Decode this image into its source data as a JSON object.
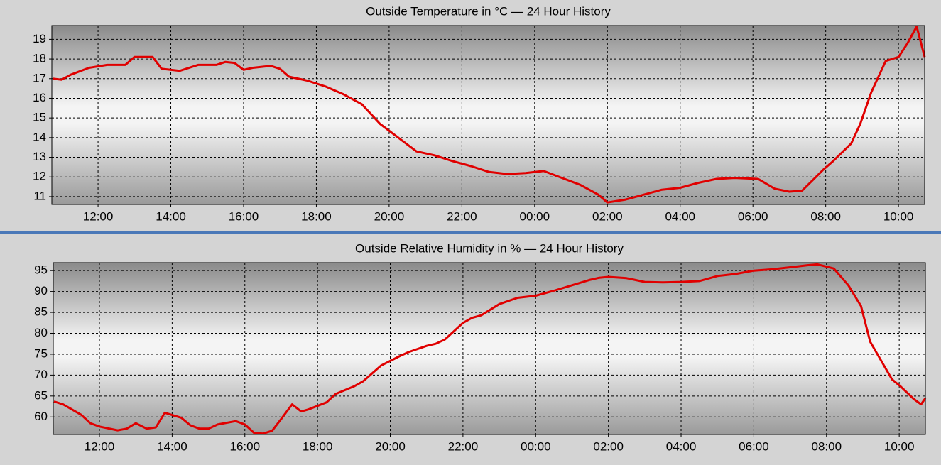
{
  "chart_data": [
    {
      "type": "line",
      "title": "Outside Temperature in °C — 24 Hour History",
      "color": "#e00000",
      "grid": true,
      "xlim": [
        10.73,
        34.72
      ],
      "ylim": [
        10.6,
        19.7
      ],
      "yticks": [
        11,
        12,
        13,
        14,
        15,
        16,
        17,
        18,
        19
      ],
      "xticks": [
        {
          "value": 12,
          "label": "12:00"
        },
        {
          "value": 14,
          "label": "14:00"
        },
        {
          "value": 16,
          "label": "16:00"
        },
        {
          "value": 18,
          "label": "18:00"
        },
        {
          "value": 20,
          "label": "20:00"
        },
        {
          "value": 22,
          "label": "22:00"
        },
        {
          "value": 24,
          "label": "00:00"
        },
        {
          "value": 26,
          "label": "02:00"
        },
        {
          "value": 28,
          "label": "04:00"
        },
        {
          "value": 30,
          "label": "06:00"
        },
        {
          "value": 32,
          "label": "08:00"
        },
        {
          "value": 34,
          "label": "10:00"
        }
      ],
      "x": [
        10.75,
        11.0,
        11.25,
        11.75,
        12.25,
        12.75,
        13.0,
        13.5,
        13.75,
        14.25,
        14.75,
        15.25,
        15.5,
        15.75,
        16.0,
        16.25,
        16.75,
        17.0,
        17.25,
        17.75,
        18.25,
        18.75,
        19.25,
        19.75,
        20.25,
        20.75,
        21.25,
        21.75,
        22.25,
        22.75,
        23.25,
        23.75,
        24.25,
        24.75,
        25.25,
        25.75,
        26.0,
        26.5,
        27.0,
        27.5,
        28.0,
        28.5,
        29.0,
        29.5,
        30.14,
        30.6,
        31.0,
        31.35,
        31.95,
        32.2,
        32.7,
        32.95,
        33.25,
        33.65,
        34.0,
        34.25,
        34.5,
        34.72
      ],
      "values": [
        17.0,
        16.95,
        17.2,
        17.55,
        17.7,
        17.7,
        18.1,
        18.1,
        17.5,
        17.4,
        17.7,
        17.7,
        17.85,
        17.8,
        17.45,
        17.55,
        17.65,
        17.5,
        17.1,
        16.9,
        16.6,
        16.2,
        15.7,
        14.7,
        14.0,
        13.3,
        13.1,
        12.8,
        12.55,
        12.25,
        12.15,
        12.2,
        12.3,
        11.95,
        11.6,
        11.1,
        10.7,
        10.85,
        11.1,
        11.35,
        11.45,
        11.7,
        11.9,
        11.95,
        11.9,
        11.4,
        11.25,
        11.3,
        12.4,
        12.8,
        13.7,
        14.7,
        16.3,
        17.9,
        18.1,
        18.8,
        19.65,
        18.1
      ]
    },
    {
      "type": "line",
      "title": "Outside Relative Humidity in % — 24 Hour History",
      "color": "#e00000",
      "grid": true,
      "xlim": [
        10.73,
        34.72
      ],
      "ylim": [
        55.8,
        96.9
      ],
      "yticks": [
        60,
        65,
        70,
        75,
        80,
        85,
        90,
        95
      ],
      "xticks": [
        {
          "value": 12,
          "label": "12:00"
        },
        {
          "value": 14,
          "label": "14:00"
        },
        {
          "value": 16,
          "label": "16:00"
        },
        {
          "value": 18,
          "label": "18:00"
        },
        {
          "value": 20,
          "label": "20:00"
        },
        {
          "value": 22,
          "label": "22:00"
        },
        {
          "value": 24,
          "label": "00:00"
        },
        {
          "value": 26,
          "label": "02:00"
        },
        {
          "value": 28,
          "label": "04:00"
        },
        {
          "value": 30,
          "label": "06:00"
        },
        {
          "value": 32,
          "label": "08:00"
        },
        {
          "value": 34,
          "label": "10:00"
        }
      ],
      "x": [
        10.75,
        11.0,
        11.5,
        11.75,
        12.0,
        12.5,
        12.75,
        13.0,
        13.3,
        13.55,
        13.8,
        14.25,
        14.5,
        14.75,
        15.0,
        15.25,
        15.75,
        16.0,
        16.25,
        16.5,
        16.75,
        17.0,
        17.3,
        17.55,
        17.75,
        18.25,
        18.5,
        19.0,
        19.25,
        19.75,
        20.25,
        20.5,
        21.0,
        21.25,
        21.5,
        21.75,
        22.0,
        22.25,
        22.5,
        23.0,
        23.5,
        24.0,
        24.5,
        25.0,
        25.5,
        25.75,
        26.0,
        26.5,
        27.0,
        27.5,
        28.0,
        28.5,
        29.0,
        29.5,
        30.0,
        30.5,
        31.0,
        31.5,
        31.75,
        32.2,
        32.6,
        32.95,
        33.2,
        33.6,
        33.8,
        34.05,
        34.4,
        34.6,
        34.72
      ],
      "values": [
        63.7,
        63.0,
        60.5,
        58.5,
        57.7,
        56.8,
        57.2,
        58.5,
        57.2,
        57.5,
        61.0,
        59.8,
        58.0,
        57.2,
        57.2,
        58.2,
        59.0,
        58.2,
        56.2,
        56.0,
        56.7,
        59.5,
        63.0,
        61.3,
        61.8,
        63.5,
        65.5,
        67.3,
        68.5,
        72.3,
        74.5,
        75.5,
        77.0,
        77.5,
        78.5,
        80.5,
        82.5,
        83.7,
        84.3,
        87.0,
        88.5,
        89.0,
        90.2,
        91.5,
        92.8,
        93.3,
        93.5,
        93.2,
        92.3,
        92.2,
        92.3,
        92.5,
        93.7,
        94.2,
        95.0,
        95.3,
        95.8,
        96.3,
        96.5,
        95.5,
        91.5,
        86.5,
        78.0,
        72.0,
        69.0,
        67.2,
        64.3,
        63.0,
        64.5
      ]
    }
  ]
}
